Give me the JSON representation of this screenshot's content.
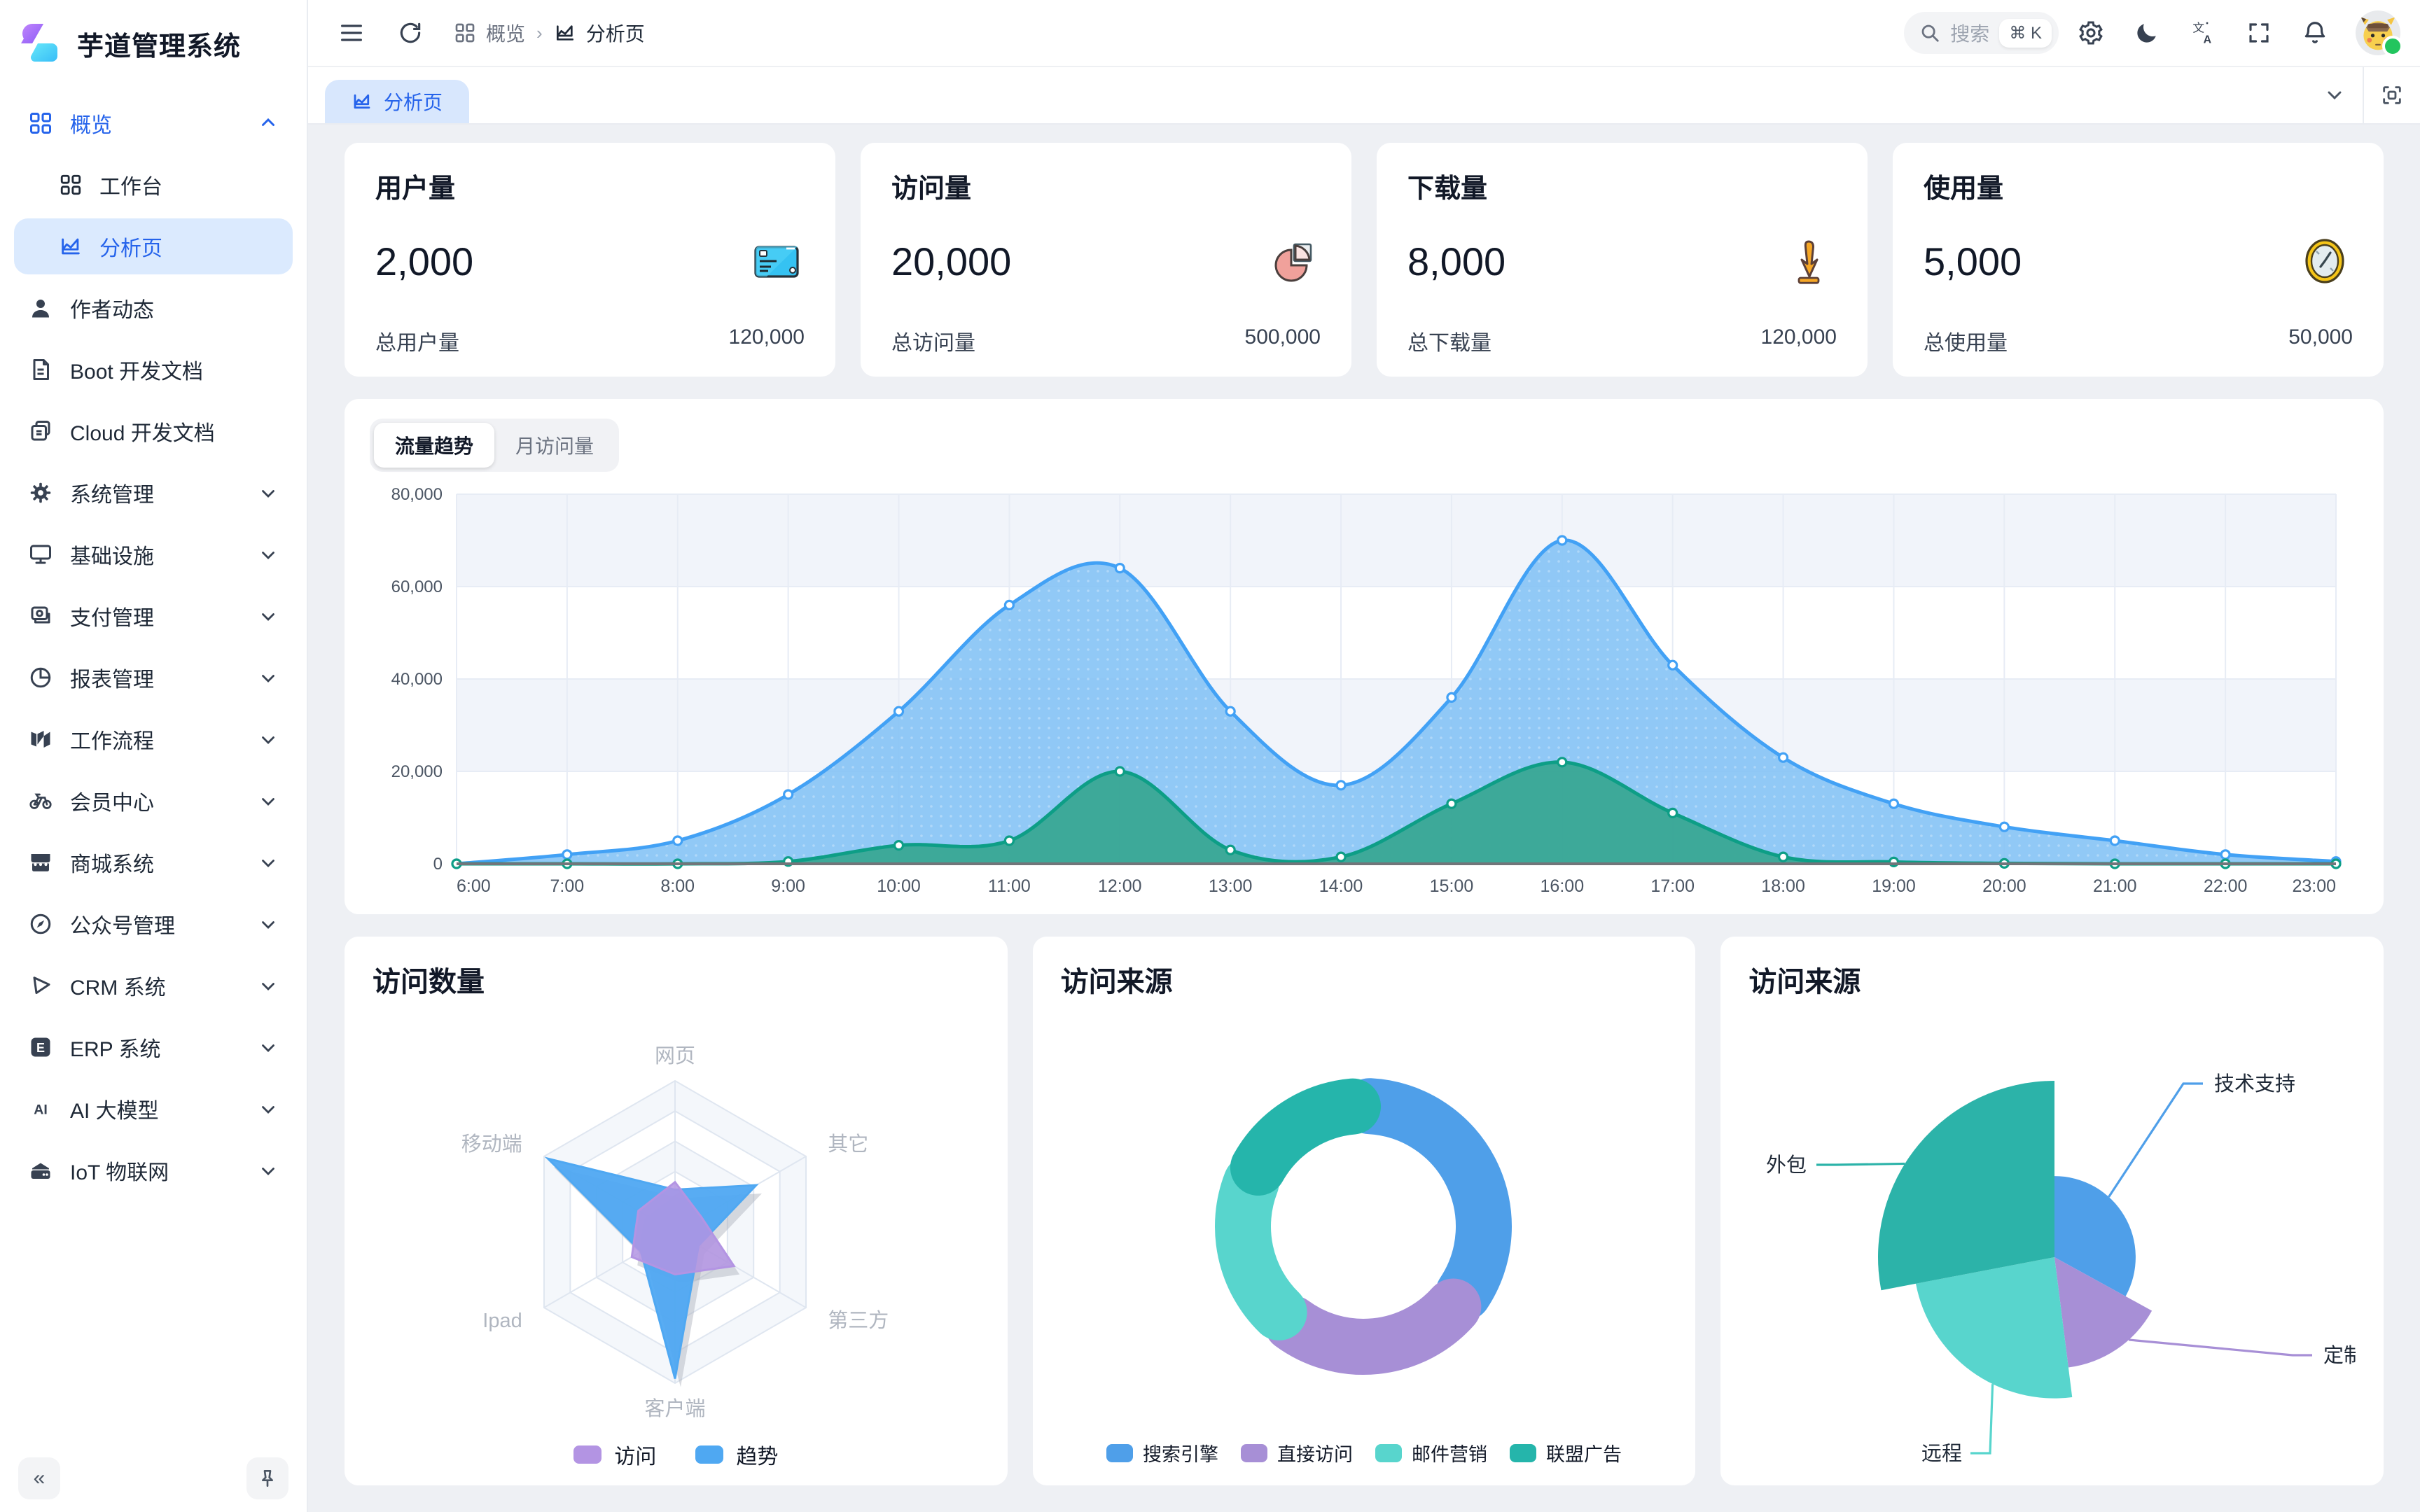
{
  "app": {
    "title": "芋道管理系统"
  },
  "sidebar": {
    "items": [
      {
        "label": "概览",
        "icon": "grid-icon",
        "expanded": true
      },
      {
        "label": "工作台",
        "icon": "workbench-icon"
      },
      {
        "label": "分析页",
        "icon": "analytics-icon",
        "active": true
      },
      {
        "label": "作者动态",
        "icon": "user-icon"
      },
      {
        "label": "Boot 开发文档",
        "icon": "document-icon"
      },
      {
        "label": "Cloud 开发文档",
        "icon": "copy-icon"
      },
      {
        "label": "系统管理",
        "icon": "gear-icon"
      },
      {
        "label": "基础设施",
        "icon": "monitor-icon"
      },
      {
        "label": "支付管理",
        "icon": "wallet-icon"
      },
      {
        "label": "报表管理",
        "icon": "pie-icon"
      },
      {
        "label": "工作流程",
        "icon": "workflow-icon"
      },
      {
        "label": "会员中心",
        "icon": "bicycle-icon"
      },
      {
        "label": "商城系统",
        "icon": "store-icon"
      },
      {
        "label": "公众号管理",
        "icon": "compass-icon"
      },
      {
        "label": "CRM 系统",
        "icon": "play-icon"
      },
      {
        "label": "ERP 系统",
        "icon": "erp-icon"
      },
      {
        "label": "AI 大模型",
        "icon": "ai-icon"
      },
      {
        "label": "IoT 物联网",
        "icon": "iot-icon"
      }
    ],
    "collapse_label": "«"
  },
  "header": {
    "breadcrumb": [
      "概览",
      "分析页"
    ],
    "search": {
      "placeholder": "搜索",
      "shortcut": "⌘ K"
    },
    "icons": [
      "settings",
      "dark-mode",
      "translate",
      "fullscreen",
      "notifications",
      "avatar"
    ]
  },
  "tabs": {
    "active": "分析页"
  },
  "stats": [
    {
      "title": "用户量",
      "value": "2,000",
      "total_label": "总用户量",
      "total_value": "120,000",
      "icon": "credit-card-icon"
    },
    {
      "title": "访问量",
      "value": "20,000",
      "total_label": "总访问量",
      "total_value": "500,000",
      "icon": "pie-chart-icon"
    },
    {
      "title": "下载量",
      "value": "8,000",
      "total_label": "总下载量",
      "total_value": "120,000",
      "icon": "download-icon"
    },
    {
      "title": "使用量",
      "value": "5,000",
      "total_label": "总使用量",
      "total_value": "50,000",
      "icon": "clock-icon"
    }
  ],
  "traffic": {
    "tabs": [
      "流量趋势",
      "月访问量"
    ],
    "active_tab": "流量趋势"
  },
  "panels": {
    "radar_title": "访问数量",
    "donut_title": "访问来源",
    "rose_title": "访问来源"
  },
  "chart_data": [
    {
      "id": "traffic-area",
      "type": "area",
      "categories": [
        "6:00",
        "7:00",
        "8:00",
        "9:00",
        "10:00",
        "11:00",
        "12:00",
        "13:00",
        "14:00",
        "15:00",
        "16:00",
        "17:00",
        "18:00",
        "19:00",
        "20:00",
        "21:00",
        "22:00",
        "23:00"
      ],
      "series": [
        {
          "name": "blue",
          "values": [
            0,
            2000,
            5000,
            15000,
            33000,
            56000,
            64000,
            33000,
            17000,
            36000,
            70000,
            43000,
            23000,
            13000,
            8000,
            5000,
            2000,
            500
          ],
          "line_color": "#42a1f5",
          "fill_color": "#85c3f5",
          "fill_opacity": 0.9
        },
        {
          "name": "green",
          "values": [
            0,
            0,
            0,
            500,
            4000,
            5000,
            20000,
            3000,
            1500,
            13000,
            22000,
            11000,
            1500,
            400,
            100,
            0,
            0,
            0
          ],
          "line_color": "#0d9e86",
          "fill_color": "#3aa796",
          "fill_opacity": 0.97
        }
      ],
      "ylim": [
        0,
        80000
      ],
      "ytick": 20000,
      "grid": true,
      "band_colors": [
        "#f1f4fa",
        "#ffffff"
      ],
      "grid_color": "#e7ecf5",
      "axis_color": "#71757a",
      "label_color": "#4b5563"
    },
    {
      "id": "visit-radar",
      "type": "radar",
      "indicators": [
        "网页",
        "其它",
        "第三方",
        "客户端",
        "Ipad",
        "移动端"
      ],
      "max": 1,
      "series": [
        {
          "name": "访问",
          "color": "#b394e3",
          "values": [
            0.33,
            0.2,
            0.45,
            0.28,
            0.33,
            0.28
          ]
        },
        {
          "name": "趋势",
          "color": "#4fa8f2",
          "values": [
            0.28,
            0.62,
            0.18,
            0.97,
            0.26,
            0.97
          ]
        }
      ],
      "legend_position": "bottom",
      "ring_colors": [
        "#f4f7fb",
        "#ffffff"
      ],
      "ring_stroke": "#dfe6f0",
      "label_color": "#b0b6c0",
      "shadow_color": "#aab0ba"
    },
    {
      "id": "source-donut",
      "type": "pie",
      "labels": [
        "搜索引擎",
        "直接访问",
        "邮件营销",
        "联盟广告"
      ],
      "values": [
        1048,
        735,
        580,
        484
      ],
      "colors": [
        "#4f9fe9",
        "#a78fd6",
        "#58d5cd",
        "#25b5ab"
      ],
      "legend_position": "bottom",
      "donut": true
    },
    {
      "id": "source-rose",
      "type": "pie",
      "labels": [
        "技术支持",
        "定制",
        "远程",
        "外包"
      ],
      "values": [
        33,
        15,
        24,
        28
      ],
      "radii": [
        0.46,
        0.63,
        0.8,
        1.0
      ],
      "colors": [
        "#4f9fe9",
        "#a78fd6",
        "#58d5cd",
        "#2cb3a9"
      ],
      "rose": true,
      "labels_outside": true
    }
  ]
}
